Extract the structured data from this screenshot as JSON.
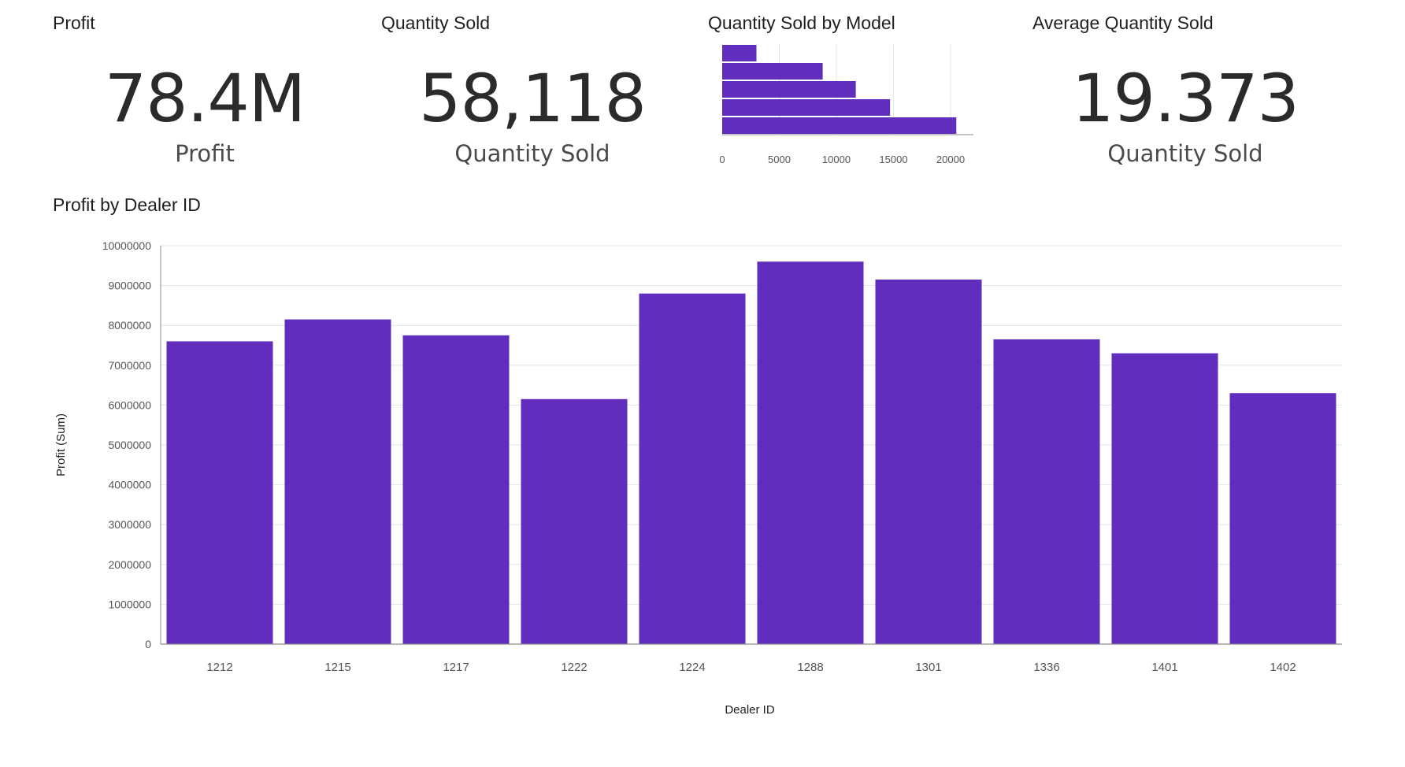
{
  "colors": {
    "bar": "#612dbd",
    "grid": "#e4e4e4",
    "axis": "#8a8a8a",
    "tick_text": "#555555",
    "title_text": "#1f1f1f",
    "kpi_text": "#2b2b2b"
  },
  "kpis": [
    {
      "title": "Profit",
      "value": "78.4M",
      "label": "Profit"
    },
    {
      "title": "Quantity Sold",
      "value": "58,118",
      "label": "Quantity Sold"
    },
    {
      "title": "Average Quantity Sold",
      "value": "19.373",
      "label": "Quantity Sold"
    }
  ],
  "chart_data": [
    {
      "type": "bar",
      "orientation": "horizontal",
      "title": "Quantity Sold by Model",
      "categories": [
        "",
        "",
        "",
        "",
        ""
      ],
      "values": [
        3000,
        8800,
        11700,
        14700,
        20500
      ],
      "xlim": [
        0,
        22000
      ],
      "xticks": [
        "0",
        "5000",
        "10000",
        "15000",
        "20000"
      ],
      "xlabel": "",
      "ylabel": "",
      "grid": true,
      "legend": "none"
    },
    {
      "type": "bar",
      "orientation": "vertical",
      "title": "Profit by Dealer ID",
      "xlabel": "Dealer ID",
      "ylabel": "Profit (Sum)",
      "categories": [
        "1212",
        "1215",
        "1217",
        "1222",
        "1224",
        "1288",
        "1301",
        "1336",
        "1401",
        "1402"
      ],
      "values": [
        7600000,
        8150000,
        7750000,
        6150000,
        8800000,
        9600000,
        9150000,
        7650000,
        7300000,
        6300000
      ],
      "ylim": [
        0,
        10000000
      ],
      "yticks": [
        "0",
        "1000000",
        "2000000",
        "3000000",
        "4000000",
        "5000000",
        "6000000",
        "7000000",
        "8000000",
        "9000000",
        "10000000"
      ],
      "grid": true,
      "legend": "none"
    }
  ]
}
